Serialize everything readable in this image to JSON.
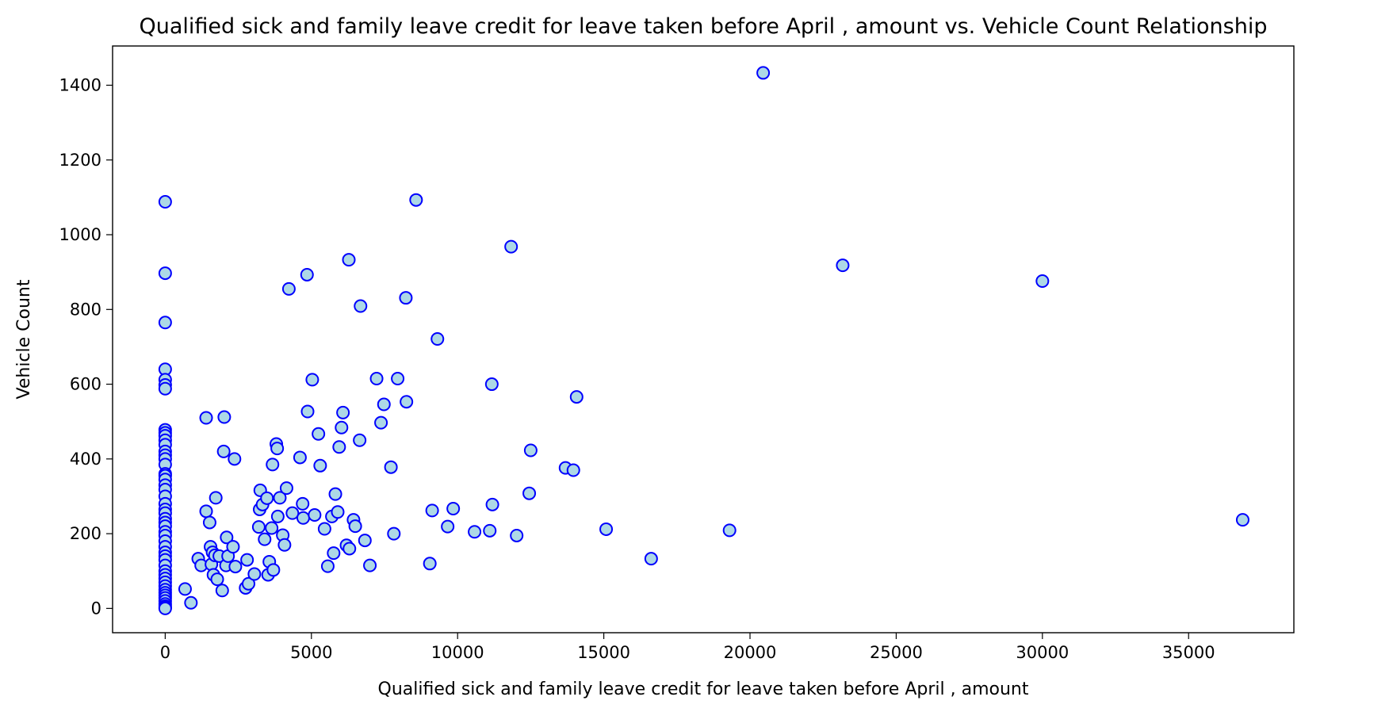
{
  "chart_data": {
    "type": "scatter",
    "title": "Qualified sick and family leave credit for leave taken before April ,  amount vs. Vehicle Count Relationship",
    "xlabel": "Qualified sick and family leave credit for leave taken before April ,  amount",
    "ylabel": "Vehicle Count",
    "xlim": [
      -1800,
      38600
    ],
    "ylim": [
      -65,
      1505
    ],
    "xticks": [
      0,
      5000,
      10000,
      15000,
      20000,
      25000,
      30000,
      35000
    ],
    "yticks": [
      0,
      200,
      400,
      600,
      800,
      1000,
      1200,
      1400
    ],
    "grid": false,
    "colors": {
      "marker_fill": "#add8e6",
      "marker_edge": "#0000ff"
    },
    "points": [
      [
        0,
        1088
      ],
      [
        0,
        897
      ],
      [
        0,
        765
      ],
      [
        0,
        640
      ],
      [
        0,
        612
      ],
      [
        0,
        598
      ],
      [
        0,
        588
      ],
      [
        0,
        478
      ],
      [
        0,
        470
      ],
      [
        0,
        462
      ],
      [
        0,
        450
      ],
      [
        0,
        438
      ],
      [
        0,
        420
      ],
      [
        0,
        410
      ],
      [
        0,
        400
      ],
      [
        0,
        385
      ],
      [
        0,
        360
      ],
      [
        0,
        355
      ],
      [
        0,
        345
      ],
      [
        0,
        330
      ],
      [
        0,
        318
      ],
      [
        0,
        300
      ],
      [
        0,
        280
      ],
      [
        0,
        265
      ],
      [
        0,
        255
      ],
      [
        0,
        240
      ],
      [
        0,
        230
      ],
      [
        0,
        220
      ],
      [
        0,
        205
      ],
      [
        0,
        195
      ],
      [
        0,
        180
      ],
      [
        0,
        165
      ],
      [
        0,
        150
      ],
      [
        0,
        140
      ],
      [
        0,
        130
      ],
      [
        0,
        115
      ],
      [
        0,
        100
      ],
      [
        0,
        90
      ],
      [
        0,
        80
      ],
      [
        0,
        70
      ],
      [
        0,
        60
      ],
      [
        0,
        50
      ],
      [
        0,
        42
      ],
      [
        0,
        35
      ],
      [
        0,
        28
      ],
      [
        0,
        20
      ],
      [
        0,
        12
      ],
      [
        0,
        6
      ],
      [
        0,
        2
      ],
      [
        0,
        0
      ],
      [
        680,
        52
      ],
      [
        880,
        15
      ],
      [
        1130,
        133
      ],
      [
        1230,
        115
      ],
      [
        1400,
        510
      ],
      [
        1400,
        260
      ],
      [
        1520,
        230
      ],
      [
        1550,
        165
      ],
      [
        1580,
        118
      ],
      [
        1620,
        150
      ],
      [
        1650,
        90
      ],
      [
        1700,
        142
      ],
      [
        1730,
        296
      ],
      [
        1780,
        78
      ],
      [
        1850,
        140
      ],
      [
        1950,
        48
      ],
      [
        2000,
        420
      ],
      [
        2020,
        512
      ],
      [
        2080,
        115
      ],
      [
        2100,
        190
      ],
      [
        2150,
        140
      ],
      [
        2320,
        165
      ],
      [
        2370,
        400
      ],
      [
        2400,
        112
      ],
      [
        2750,
        55
      ],
      [
        2800,
        130
      ],
      [
        2850,
        66
      ],
      [
        3050,
        92
      ],
      [
        3200,
        218
      ],
      [
        3230,
        265
      ],
      [
        3250,
        316
      ],
      [
        3330,
        278
      ],
      [
        3400,
        185
      ],
      [
        3480,
        295
      ],
      [
        3520,
        90
      ],
      [
        3560,
        125
      ],
      [
        3640,
        215
      ],
      [
        3670,
        385
      ],
      [
        3700,
        103
      ],
      [
        3800,
        440
      ],
      [
        3830,
        428
      ],
      [
        3850,
        246
      ],
      [
        3920,
        296
      ],
      [
        4020,
        196
      ],
      [
        4080,
        170
      ],
      [
        4150,
        322
      ],
      [
        4230,
        855
      ],
      [
        4350,
        255
      ],
      [
        4610,
        404
      ],
      [
        4700,
        280
      ],
      [
        4720,
        242
      ],
      [
        4850,
        893
      ],
      [
        4870,
        527
      ],
      [
        5030,
        612
      ],
      [
        5110,
        250
      ],
      [
        5240,
        467
      ],
      [
        5300,
        382
      ],
      [
        5450,
        213
      ],
      [
        5560,
        113
      ],
      [
        5700,
        246
      ],
      [
        5760,
        148
      ],
      [
        5820,
        306
      ],
      [
        5900,
        258
      ],
      [
        5950,
        432
      ],
      [
        6030,
        484
      ],
      [
        6080,
        524
      ],
      [
        6200,
        169
      ],
      [
        6280,
        933
      ],
      [
        6300,
        160
      ],
      [
        6440,
        237
      ],
      [
        6500,
        220
      ],
      [
        6650,
        450
      ],
      [
        6680,
        809
      ],
      [
        6830,
        182
      ],
      [
        7000,
        115
      ],
      [
        7230,
        615
      ],
      [
        7380,
        497
      ],
      [
        7480,
        546
      ],
      [
        7720,
        378
      ],
      [
        7820,
        200
      ],
      [
        7950,
        615
      ],
      [
        8230,
        831
      ],
      [
        8250,
        553
      ],
      [
        8580,
        1093
      ],
      [
        9050,
        120
      ],
      [
        9130,
        262
      ],
      [
        9310,
        721
      ],
      [
        9660,
        219
      ],
      [
        9850,
        267
      ],
      [
        10580,
        205
      ],
      [
        11100,
        208
      ],
      [
        11170,
        600
      ],
      [
        11190,
        278
      ],
      [
        11830,
        968
      ],
      [
        12020,
        195
      ],
      [
        12450,
        308
      ],
      [
        12500,
        423
      ],
      [
        13690,
        376
      ],
      [
        13960,
        370
      ],
      [
        14070,
        566
      ],
      [
        15080,
        212
      ],
      [
        16620,
        133
      ],
      [
        19300,
        209
      ],
      [
        20450,
        1433
      ],
      [
        23170,
        918
      ],
      [
        30000,
        876
      ],
      [
        36850,
        237
      ]
    ]
  }
}
